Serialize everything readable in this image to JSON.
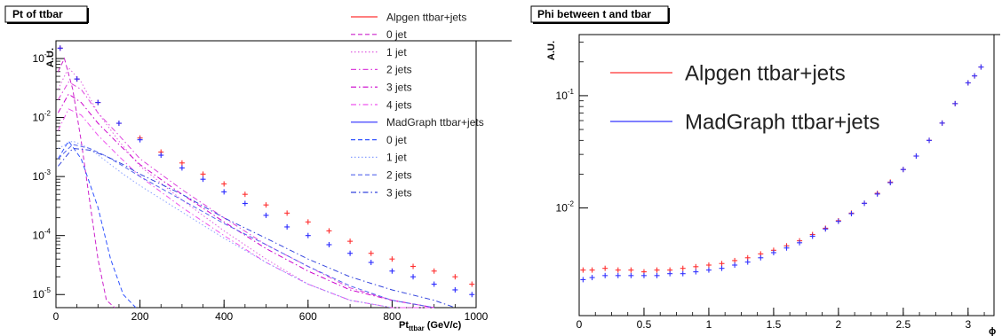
{
  "chart_data": [
    {
      "type": "line",
      "title": "Pt of ttbar",
      "xlabel": "Pt",
      "xlabel_sub": "ttbar",
      "xlabel_unit": "(GeV/c)",
      "ylabel": "A.U.",
      "xlim": [
        0,
        1000
      ],
      "ylim": [
        6e-06,
        0.2
      ],
      "ylog": true,
      "grid": false,
      "legend_position": "top-right",
      "x_ticks": [
        {
          "v": 0,
          "label": "0"
        },
        {
          "v": 200,
          "label": "200"
        },
        {
          "v": 400,
          "label": "400"
        },
        {
          "v": 600,
          "label": "600"
        },
        {
          "v": 800,
          "label": "800"
        },
        {
          "v": 1000,
          "label": "1000"
        }
      ],
      "y_ticks": [
        {
          "v": 1e-05,
          "base": "10",
          "exp": "-5"
        },
        {
          "v": 0.0001,
          "base": "10",
          "exp": "-4"
        },
        {
          "v": 0.001,
          "base": "10",
          "exp": "-3"
        },
        {
          "v": 0.01,
          "base": "10",
          "exp": "-2"
        },
        {
          "v": 0.1,
          "base": "10",
          "exp": "-1"
        }
      ],
      "series": [
        {
          "name": "Alpgen ttbar+jets",
          "color": "#ff3030",
          "style": "solid",
          "marker": "cross",
          "x": [
            10,
            50,
            100,
            150,
            200,
            250,
            300,
            350,
            400,
            450,
            500,
            550,
            600,
            650,
            700,
            750,
            800,
            850,
            900,
            950,
            990
          ],
          "y": [
            0.15,
            0.045,
            0.018,
            0.008,
            0.0045,
            0.0026,
            0.0017,
            0.0011,
            0.00075,
            0.0005,
            0.00033,
            0.00024,
            0.00017,
            0.00012,
            8e-05,
            5e-05,
            4e-05,
            3e-05,
            2.5e-05,
            2e-05,
            1.5e-05
          ]
        },
        {
          "name": "0 jet",
          "color": "#cc22cc",
          "style": "dashed",
          "marker": "none",
          "x": [
            5,
            20,
            40,
            60,
            80,
            100,
            120,
            140
          ],
          "y": [
            0.06,
            0.1,
            0.03,
            0.004,
            0.0004,
            4e-05,
            8e-06,
            6e-06
          ]
        },
        {
          "name": "1 jet",
          "color": "#e060e0",
          "style": "dotted",
          "marker": "none",
          "x": [
            5,
            30,
            60,
            100,
            150,
            200,
            300,
            400,
            500,
            600,
            700,
            800,
            900
          ],
          "y": [
            0.03,
            0.07,
            0.04,
            0.012,
            0.004,
            0.0015,
            0.0004,
            0.00012,
            4e-05,
            1.5e-05,
            8e-06,
            6e-06,
            6e-06
          ]
        },
        {
          "name": "2 jets",
          "color": "#dd44dd",
          "style": "dashdot",
          "marker": "none",
          "x": [
            5,
            30,
            60,
            100,
            150,
            200,
            300,
            400,
            500,
            600,
            700,
            800,
            900
          ],
          "y": [
            0.02,
            0.04,
            0.03,
            0.012,
            0.005,
            0.002,
            0.0006,
            0.0002,
            7e-05,
            3e-05,
            1.3e-05,
            8e-06,
            6e-06
          ]
        },
        {
          "name": "3 jets",
          "color": "#cc00cc",
          "style": "dashdot",
          "marker": "none",
          "x": [
            5,
            30,
            60,
            100,
            150,
            200,
            300,
            400,
            500,
            600,
            700,
            800,
            900
          ],
          "y": [
            0.012,
            0.025,
            0.018,
            0.008,
            0.0035,
            0.0016,
            0.0005,
            0.00017,
            6e-05,
            2.5e-05,
            1.2e-05,
            8e-06,
            6e-06
          ]
        },
        {
          "name": "4 jets",
          "color": "#ee55ee",
          "style": "dashdot",
          "marker": "none",
          "x": [
            5,
            30,
            60,
            100,
            150,
            200,
            300,
            400,
            500,
            600,
            700,
            800,
            900
          ],
          "y": [
            0.006,
            0.014,
            0.011,
            0.005,
            0.0022,
            0.001,
            0.0003,
            0.0001,
            3.5e-05,
            1.5e-05,
            8e-06,
            6e-06,
            6e-06
          ]
        },
        {
          "name": "MadGraph ttbar+jets",
          "color": "#2a2aff",
          "style": "solid",
          "marker": "cross",
          "x": [
            10,
            50,
            100,
            150,
            200,
            250,
            300,
            350,
            400,
            450,
            500,
            550,
            600,
            650,
            700,
            750,
            800,
            850,
            900,
            950,
            990
          ],
          "y": [
            0.15,
            0.045,
            0.018,
            0.008,
            0.0042,
            0.0023,
            0.0014,
            0.0009,
            0.00055,
            0.00035,
            0.00022,
            0.00014,
            0.0001,
            7e-05,
            5e-05,
            3.5e-05,
            2.5e-05,
            2e-05,
            1.5e-05,
            1.2e-05,
            1e-05
          ]
        },
        {
          "name": "0 jet",
          "color": "#3355ff",
          "style": "dashed",
          "marker": "none",
          "x": [
            5,
            30,
            60,
            100,
            130,
            160,
            190
          ],
          "y": [
            0.002,
            0.004,
            0.002,
            0.0003,
            4e-05,
            1e-05,
            6e-06
          ]
        },
        {
          "name": "1 jet",
          "color": "#8aa0ff",
          "style": "dotted",
          "marker": "none",
          "x": [
            5,
            40,
            80,
            120,
            160,
            200,
            300,
            400,
            500,
            600,
            700,
            800
          ],
          "y": [
            0.003,
            0.004,
            0.003,
            0.0018,
            0.0011,
            0.0007,
            0.00025,
            9e-05,
            3.5e-05,
            1.5e-05,
            8e-06,
            6e-06
          ]
        },
        {
          "name": "2 jets",
          "color": "#5566ee",
          "style": "dashed",
          "marker": "none",
          "x": [
            5,
            40,
            80,
            120,
            160,
            200,
            300,
            400,
            500,
            600,
            700,
            800,
            900
          ],
          "y": [
            0.002,
            0.0035,
            0.003,
            0.0022,
            0.0015,
            0.001,
            0.0004,
            0.00016,
            7e-05,
            3e-05,
            1.4e-05,
            8e-06,
            6e-06
          ]
        },
        {
          "name": "3 jets",
          "color": "#3344dd",
          "style": "dashdot",
          "marker": "none",
          "x": [
            5,
            40,
            80,
            120,
            160,
            200,
            300,
            400,
            500,
            600,
            700,
            800,
            900,
            950
          ],
          "y": [
            0.0015,
            0.003,
            0.0028,
            0.0022,
            0.0016,
            0.0011,
            0.0005,
            0.0002,
            9e-05,
            4e-05,
            2e-05,
            1.2e-05,
            8e-06,
            6e-06
          ]
        }
      ]
    },
    {
      "type": "line",
      "title": "Phi between t and tbar",
      "xlabel": "ϕ",
      "ylabel": "A.U.",
      "xlim": [
        0,
        3.2
      ],
      "ylim": [
        0.0011,
        0.35
      ],
      "ylog": true,
      "grid": false,
      "legend_position": "top-left",
      "x_ticks": [
        {
          "v": 0,
          "label": "0"
        },
        {
          "v": 0.5,
          "label": "0.5"
        },
        {
          "v": 1,
          "label": "1"
        },
        {
          "v": 1.5,
          "label": "1.5"
        },
        {
          "v": 2,
          "label": "2"
        },
        {
          "v": 2.5,
          "label": "2.5"
        },
        {
          "v": 3,
          "label": "3"
        }
      ],
      "y_ticks": [
        {
          "v": 0.01,
          "base": "10",
          "exp": "-2"
        },
        {
          "v": 0.1,
          "base": "10",
          "exp": "-1"
        }
      ],
      "series": [
        {
          "name": "Alpgen ttbar+jets",
          "color": "#ff3030",
          "style": "solid",
          "marker": "cross",
          "x": [
            0.03,
            0.1,
            0.2,
            0.3,
            0.4,
            0.5,
            0.6,
            0.7,
            0.8,
            0.9,
            1.0,
            1.1,
            1.2,
            1.3,
            1.4,
            1.5,
            1.6,
            1.7,
            1.8,
            1.9,
            2.0,
            2.1,
            2.2,
            2.3,
            2.4,
            2.5,
            2.6,
            2.7,
            2.8,
            2.9,
            3.0,
            3.05,
            3.1
          ],
          "y": [
            0.0028,
            0.0028,
            0.0029,
            0.0028,
            0.0028,
            0.0027,
            0.0028,
            0.0028,
            0.0029,
            0.003,
            0.0031,
            0.0032,
            0.0034,
            0.0036,
            0.0039,
            0.0042,
            0.0046,
            0.0051,
            0.0058,
            0.0066,
            0.0077,
            0.009,
            0.011,
            0.0135,
            0.017,
            0.022,
            0.029,
            0.04,
            0.057,
            0.085,
            0.13,
            0.15,
            0.18
          ]
        },
        {
          "name": "MadGraph ttbar+jets",
          "color": "#3333ff",
          "style": "solid",
          "marker": "cross",
          "x": [
            0.03,
            0.1,
            0.2,
            0.3,
            0.4,
            0.5,
            0.6,
            0.7,
            0.8,
            0.9,
            1.0,
            1.1,
            1.2,
            1.3,
            1.4,
            1.5,
            1.6,
            1.7,
            1.8,
            1.9,
            2.0,
            2.1,
            2.2,
            2.3,
            2.4,
            2.5,
            2.6,
            2.7,
            2.8,
            2.9,
            3.0,
            3.05,
            3.1
          ],
          "y": [
            0.0023,
            0.0024,
            0.0025,
            0.0025,
            0.0025,
            0.0025,
            0.0025,
            0.0026,
            0.0026,
            0.0027,
            0.0028,
            0.0029,
            0.0031,
            0.0033,
            0.0036,
            0.004,
            0.0044,
            0.0049,
            0.0056,
            0.0065,
            0.0076,
            0.0089,
            0.011,
            0.0133,
            0.0168,
            0.022,
            0.029,
            0.04,
            0.057,
            0.085,
            0.13,
            0.15,
            0.18
          ]
        }
      ]
    }
  ]
}
